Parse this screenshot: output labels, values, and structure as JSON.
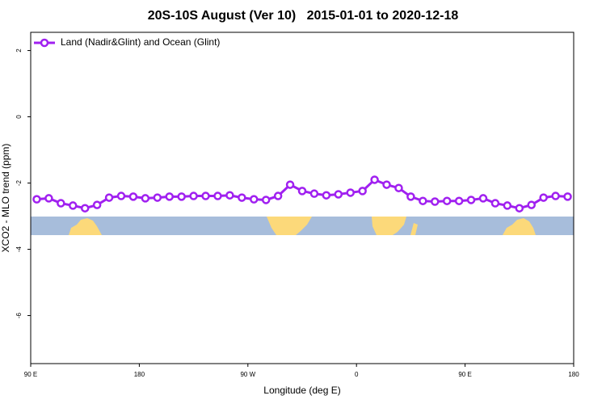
{
  "chart_data": {
    "type": "line",
    "title": "20S-10S August (Ver 10)   2015-01-01 to 2020-12-18",
    "xlabel": "Longitude (deg E)",
    "ylabel": "XCO2 - MLO trend (ppm)",
    "xlim": [
      90,
      540
    ],
    "ylim": [
      -7.45,
      2.55
    ],
    "xticks": [
      {
        "value": 90,
        "label": "90 E"
      },
      180,
      {
        "value": 270,
        "label": "90 W"
      },
      {
        "value": 360,
        "label": "0"
      },
      {
        "value": 450,
        "label": "90 E"
      },
      {
        "value": 540,
        "label": "180"
      }
    ],
    "yticks": [
      2,
      0,
      -2,
      -4,
      -6
    ],
    "legend": "top-left",
    "series": [
      {
        "name": "Land (Nadir&Glint) and Ocean (Glint)",
        "color": "#a020f0",
        "x": [
          95,
          105,
          115,
          125,
          135,
          145,
          155,
          165,
          175,
          185,
          195,
          205,
          215,
          225,
          235,
          245,
          255,
          265,
          275,
          285,
          295,
          305,
          315,
          325,
          335,
          345,
          355,
          365,
          375,
          385,
          395,
          405,
          415,
          425,
          435,
          445,
          455,
          465,
          475,
          485,
          495,
          505,
          515,
          525,
          535
        ],
        "values": [
          -2.49,
          -2.46,
          -2.61,
          -2.68,
          -2.76,
          -2.66,
          -2.44,
          -2.39,
          -2.41,
          -2.46,
          -2.44,
          -2.41,
          -2.41,
          -2.39,
          -2.39,
          -2.39,
          -2.37,
          -2.44,
          -2.49,
          -2.51,
          -2.39,
          -2.05,
          -2.24,
          -2.32,
          -2.37,
          -2.34,
          -2.29,
          -2.24,
          -1.9,
          -2.05,
          -2.15,
          -2.41,
          -2.54,
          -2.56,
          -2.54,
          -2.54,
          -2.51,
          -2.46,
          -2.61,
          -2.68,
          -2.76,
          -2.66,
          -2.44,
          -2.39,
          -2.41
        ]
      }
    ]
  }
}
